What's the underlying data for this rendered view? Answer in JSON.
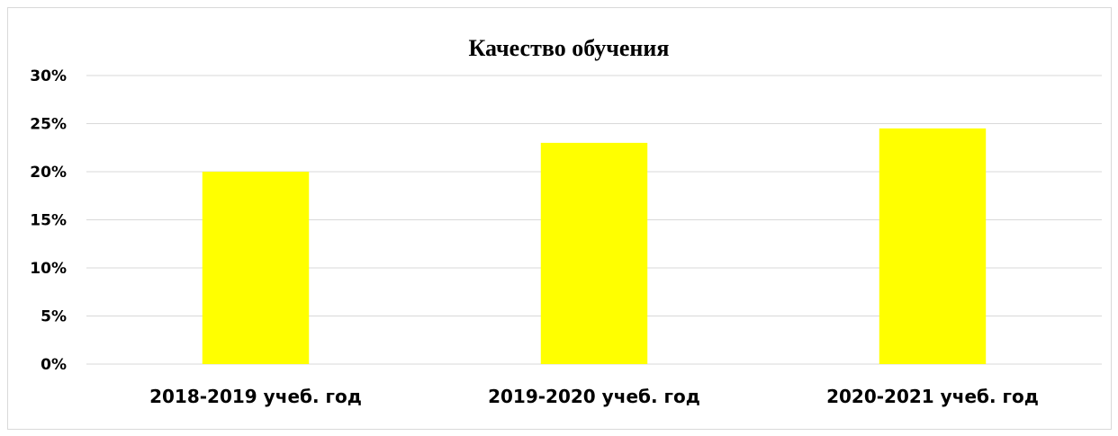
{
  "chart_data": {
    "type": "bar",
    "title": "Качество обучения",
    "categories": [
      "2018-2019 учеб. год",
      "2019-2020 учеб. год",
      "2020-2021 учеб. год"
    ],
    "series": [
      {
        "values": [
          0.2,
          0.23,
          0.245
        ],
        "color": "#ffff00"
      }
    ],
    "xlabel": "",
    "ylabel": "",
    "ylim": [
      0,
      0.3
    ],
    "yticks": [
      {
        "value": 0,
        "label": "0%"
      },
      {
        "value": 0.05,
        "label": "5%"
      },
      {
        "value": 0.1,
        "label": "10%"
      },
      {
        "value": 0.15,
        "label": "15%"
      },
      {
        "value": 0.2,
        "label": "20%"
      },
      {
        "value": 0.25,
        "label": "25%"
      },
      {
        "value": 0.3,
        "label": "30%"
      }
    ],
    "grid": true,
    "legend": "none",
    "gridline_color": "#d9d9d9"
  }
}
